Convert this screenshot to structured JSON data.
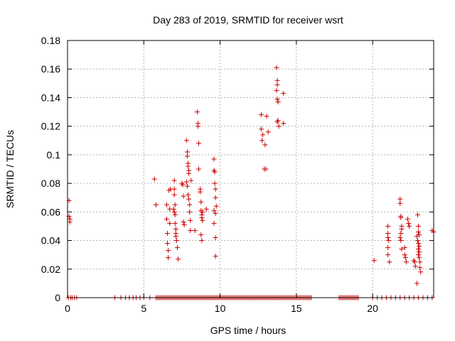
{
  "chart_data": {
    "type": "scatter",
    "title": "Day 283 of 2019, SRMTID for receiver wsrt",
    "xlabel": "GPS time / hours",
    "ylabel": "SRMTID / TECUs",
    "xlim": [
      0,
      24
    ],
    "ylim": [
      0,
      0.18
    ],
    "x_ticks": [
      0,
      5,
      10,
      15,
      20
    ],
    "x_tick_labels": [
      "0",
      "5",
      "10",
      "15",
      "20"
    ],
    "y_ticks": [
      0,
      0.02,
      0.04,
      0.06,
      0.08,
      0.1,
      0.12,
      0.14,
      0.16,
      0.18
    ],
    "y_tick_labels": [
      "0",
      "0.02",
      "0.04",
      "0.06",
      "0.08",
      "0.1",
      "0.12",
      "0.14",
      "0.16",
      "0.18"
    ],
    "grid": true,
    "marker_color": "#cc0000",
    "series": [
      {
        "name": "SRMTID",
        "points": [
          [
            0.1,
            0.068
          ],
          [
            0.1,
            0.057
          ],
          [
            0.15,
            0.055
          ],
          [
            0.15,
            0.053
          ],
          [
            5.7,
            0.083
          ],
          [
            5.8,
            0.065
          ],
          [
            6.5,
            0.065
          ],
          [
            6.5,
            0.055
          ],
          [
            6.55,
            0.045
          ],
          [
            6.55,
            0.038
          ],
          [
            6.6,
            0.033
          ],
          [
            6.6,
            0.028
          ],
          [
            6.65,
            0.075
          ],
          [
            6.7,
            0.062
          ],
          [
            6.7,
            0.052
          ],
          [
            6.75,
            0.076
          ],
          [
            7.0,
            0.082
          ],
          [
            7.0,
            0.076
          ],
          [
            7.0,
            0.072
          ],
          [
            7.05,
            0.065
          ],
          [
            7.05,
            0.058
          ],
          [
            7.05,
            0.052
          ],
          [
            7.1,
            0.048
          ],
          [
            7.1,
            0.045
          ],
          [
            7.1,
            0.043
          ],
          [
            7.15,
            0.04
          ],
          [
            7.2,
            0.035
          ],
          [
            7.25,
            0.027
          ],
          [
            6.95,
            0.062
          ],
          [
            7.0,
            0.06
          ],
          [
            7.5,
            0.08
          ],
          [
            7.55,
            0.079
          ],
          [
            7.6,
            0.071
          ],
          [
            7.6,
            0.053
          ],
          [
            7.65,
            0.051
          ],
          [
            7.8,
            0.11
          ],
          [
            7.85,
            0.102
          ],
          [
            7.85,
            0.099
          ],
          [
            7.9,
            0.094
          ],
          [
            7.9,
            0.092
          ],
          [
            7.95,
            0.089
          ],
          [
            7.95,
            0.087
          ],
          [
            7.8,
            0.081
          ],
          [
            7.85,
            0.078
          ],
          [
            7.9,
            0.072
          ],
          [
            7.95,
            0.069
          ],
          [
            8.0,
            0.065
          ],
          [
            8.0,
            0.06
          ],
          [
            8.05,
            0.054
          ],
          [
            8.05,
            0.047
          ],
          [
            8.35,
            0.047
          ],
          [
            8.1,
            0.082
          ],
          [
            8.5,
            0.13
          ],
          [
            8.55,
            0.122
          ],
          [
            8.55,
            0.12
          ],
          [
            8.6,
            0.108
          ],
          [
            8.6,
            0.09
          ],
          [
            8.7,
            0.076
          ],
          [
            8.7,
            0.074
          ],
          [
            8.75,
            0.067
          ],
          [
            8.75,
            0.061
          ],
          [
            8.8,
            0.058
          ],
          [
            8.8,
            0.056
          ],
          [
            8.85,
            0.06
          ],
          [
            8.85,
            0.054
          ],
          [
            8.75,
            0.044
          ],
          [
            8.8,
            0.04
          ],
          [
            9.1,
            0.062
          ],
          [
            9.6,
            0.097
          ],
          [
            9.6,
            0.089
          ],
          [
            9.65,
            0.088
          ],
          [
            9.65,
            0.08
          ],
          [
            9.7,
            0.076
          ],
          [
            9.7,
            0.07
          ],
          [
            9.75,
            0.064
          ],
          [
            9.6,
            0.061
          ],
          [
            9.7,
            0.059
          ],
          [
            9.6,
            0.052
          ],
          [
            9.7,
            0.042
          ],
          [
            9.7,
            0.029
          ],
          [
            12.7,
            0.128
          ],
          [
            12.9,
            0.09
          ],
          [
            13.0,
            0.09
          ],
          [
            13.05,
            0.127
          ],
          [
            12.7,
            0.118
          ],
          [
            12.8,
            0.114
          ],
          [
            12.95,
            0.107
          ],
          [
            13.15,
            0.116
          ],
          [
            12.75,
            0.11
          ],
          [
            13.7,
            0.161
          ],
          [
            13.75,
            0.152
          ],
          [
            13.75,
            0.149
          ],
          [
            13.7,
            0.145
          ],
          [
            13.75,
            0.139
          ],
          [
            13.8,
            0.137
          ],
          [
            13.8,
            0.124
          ],
          [
            13.75,
            0.123
          ],
          [
            13.85,
            0.12
          ],
          [
            14.15,
            0.122
          ],
          [
            14.15,
            0.143
          ],
          [
            20.1,
            0.026
          ],
          [
            21.0,
            0.05
          ],
          [
            21.0,
            0.045
          ],
          [
            21.0,
            0.042
          ],
          [
            21.05,
            0.04
          ],
          [
            21.0,
            0.035
          ],
          [
            21.0,
            0.03
          ],
          [
            21.1,
            0.025
          ],
          [
            21.8,
            0.069
          ],
          [
            21.8,
            0.066
          ],
          [
            21.85,
            0.057
          ],
          [
            21.85,
            0.056
          ],
          [
            21.9,
            0.05
          ],
          [
            21.9,
            0.048
          ],
          [
            21.85,
            0.045
          ],
          [
            21.8,
            0.042
          ],
          [
            21.85,
            0.04
          ],
          [
            21.9,
            0.034
          ],
          [
            22.1,
            0.035
          ],
          [
            22.1,
            0.03
          ],
          [
            22.15,
            0.028
          ],
          [
            22.2,
            0.025
          ],
          [
            22.3,
            0.055
          ],
          [
            22.35,
            0.052
          ],
          [
            22.4,
            0.05
          ],
          [
            22.7,
            0.026
          ],
          [
            22.75,
            0.025
          ],
          [
            22.8,
            0.022
          ],
          [
            22.9,
            0.01
          ],
          [
            22.95,
            0.058
          ],
          [
            23.0,
            0.05
          ],
          [
            23.0,
            0.046
          ],
          [
            22.9,
            0.043
          ],
          [
            22.95,
            0.04
          ],
          [
            23.0,
            0.038
          ],
          [
            23.05,
            0.036
          ],
          [
            23.0,
            0.034
          ],
          [
            23.05,
            0.032
          ],
          [
            23.0,
            0.03
          ],
          [
            23.05,
            0.028
          ],
          [
            23.1,
            0.025
          ],
          [
            23.1,
            0.021
          ],
          [
            23.15,
            0.018
          ],
          [
            23.05,
            0.044
          ],
          [
            23.9,
            0.047
          ],
          [
            24.0,
            0.046
          ],
          [
            0.05,
            0
          ],
          [
            0.2,
            0
          ],
          [
            0.3,
            0
          ],
          [
            0.45,
            0
          ],
          [
            0.6,
            0
          ],
          [
            3.1,
            0
          ],
          [
            3.5,
            0
          ],
          [
            3.8,
            0
          ],
          [
            4.05,
            0
          ],
          [
            4.3,
            0
          ],
          [
            4.5,
            0
          ],
          [
            4.75,
            0
          ],
          [
            5.0,
            0
          ],
          [
            5.4,
            0
          ],
          [
            20.0,
            0
          ],
          [
            20.3,
            0
          ],
          [
            20.6,
            0
          ],
          [
            20.9,
            0
          ],
          [
            21.2,
            0
          ],
          [
            21.5,
            0
          ],
          [
            21.8,
            0
          ],
          [
            22.1,
            0
          ],
          [
            22.4,
            0
          ],
          [
            22.7,
            0
          ],
          [
            23.0,
            0
          ],
          [
            23.3,
            0
          ],
          [
            23.6,
            0
          ],
          [
            23.9,
            0
          ]
        ]
      }
    ],
    "dense_zero_ranges": [
      [
        5.8,
        16.0
      ],
      [
        17.8,
        19.1
      ]
    ]
  }
}
